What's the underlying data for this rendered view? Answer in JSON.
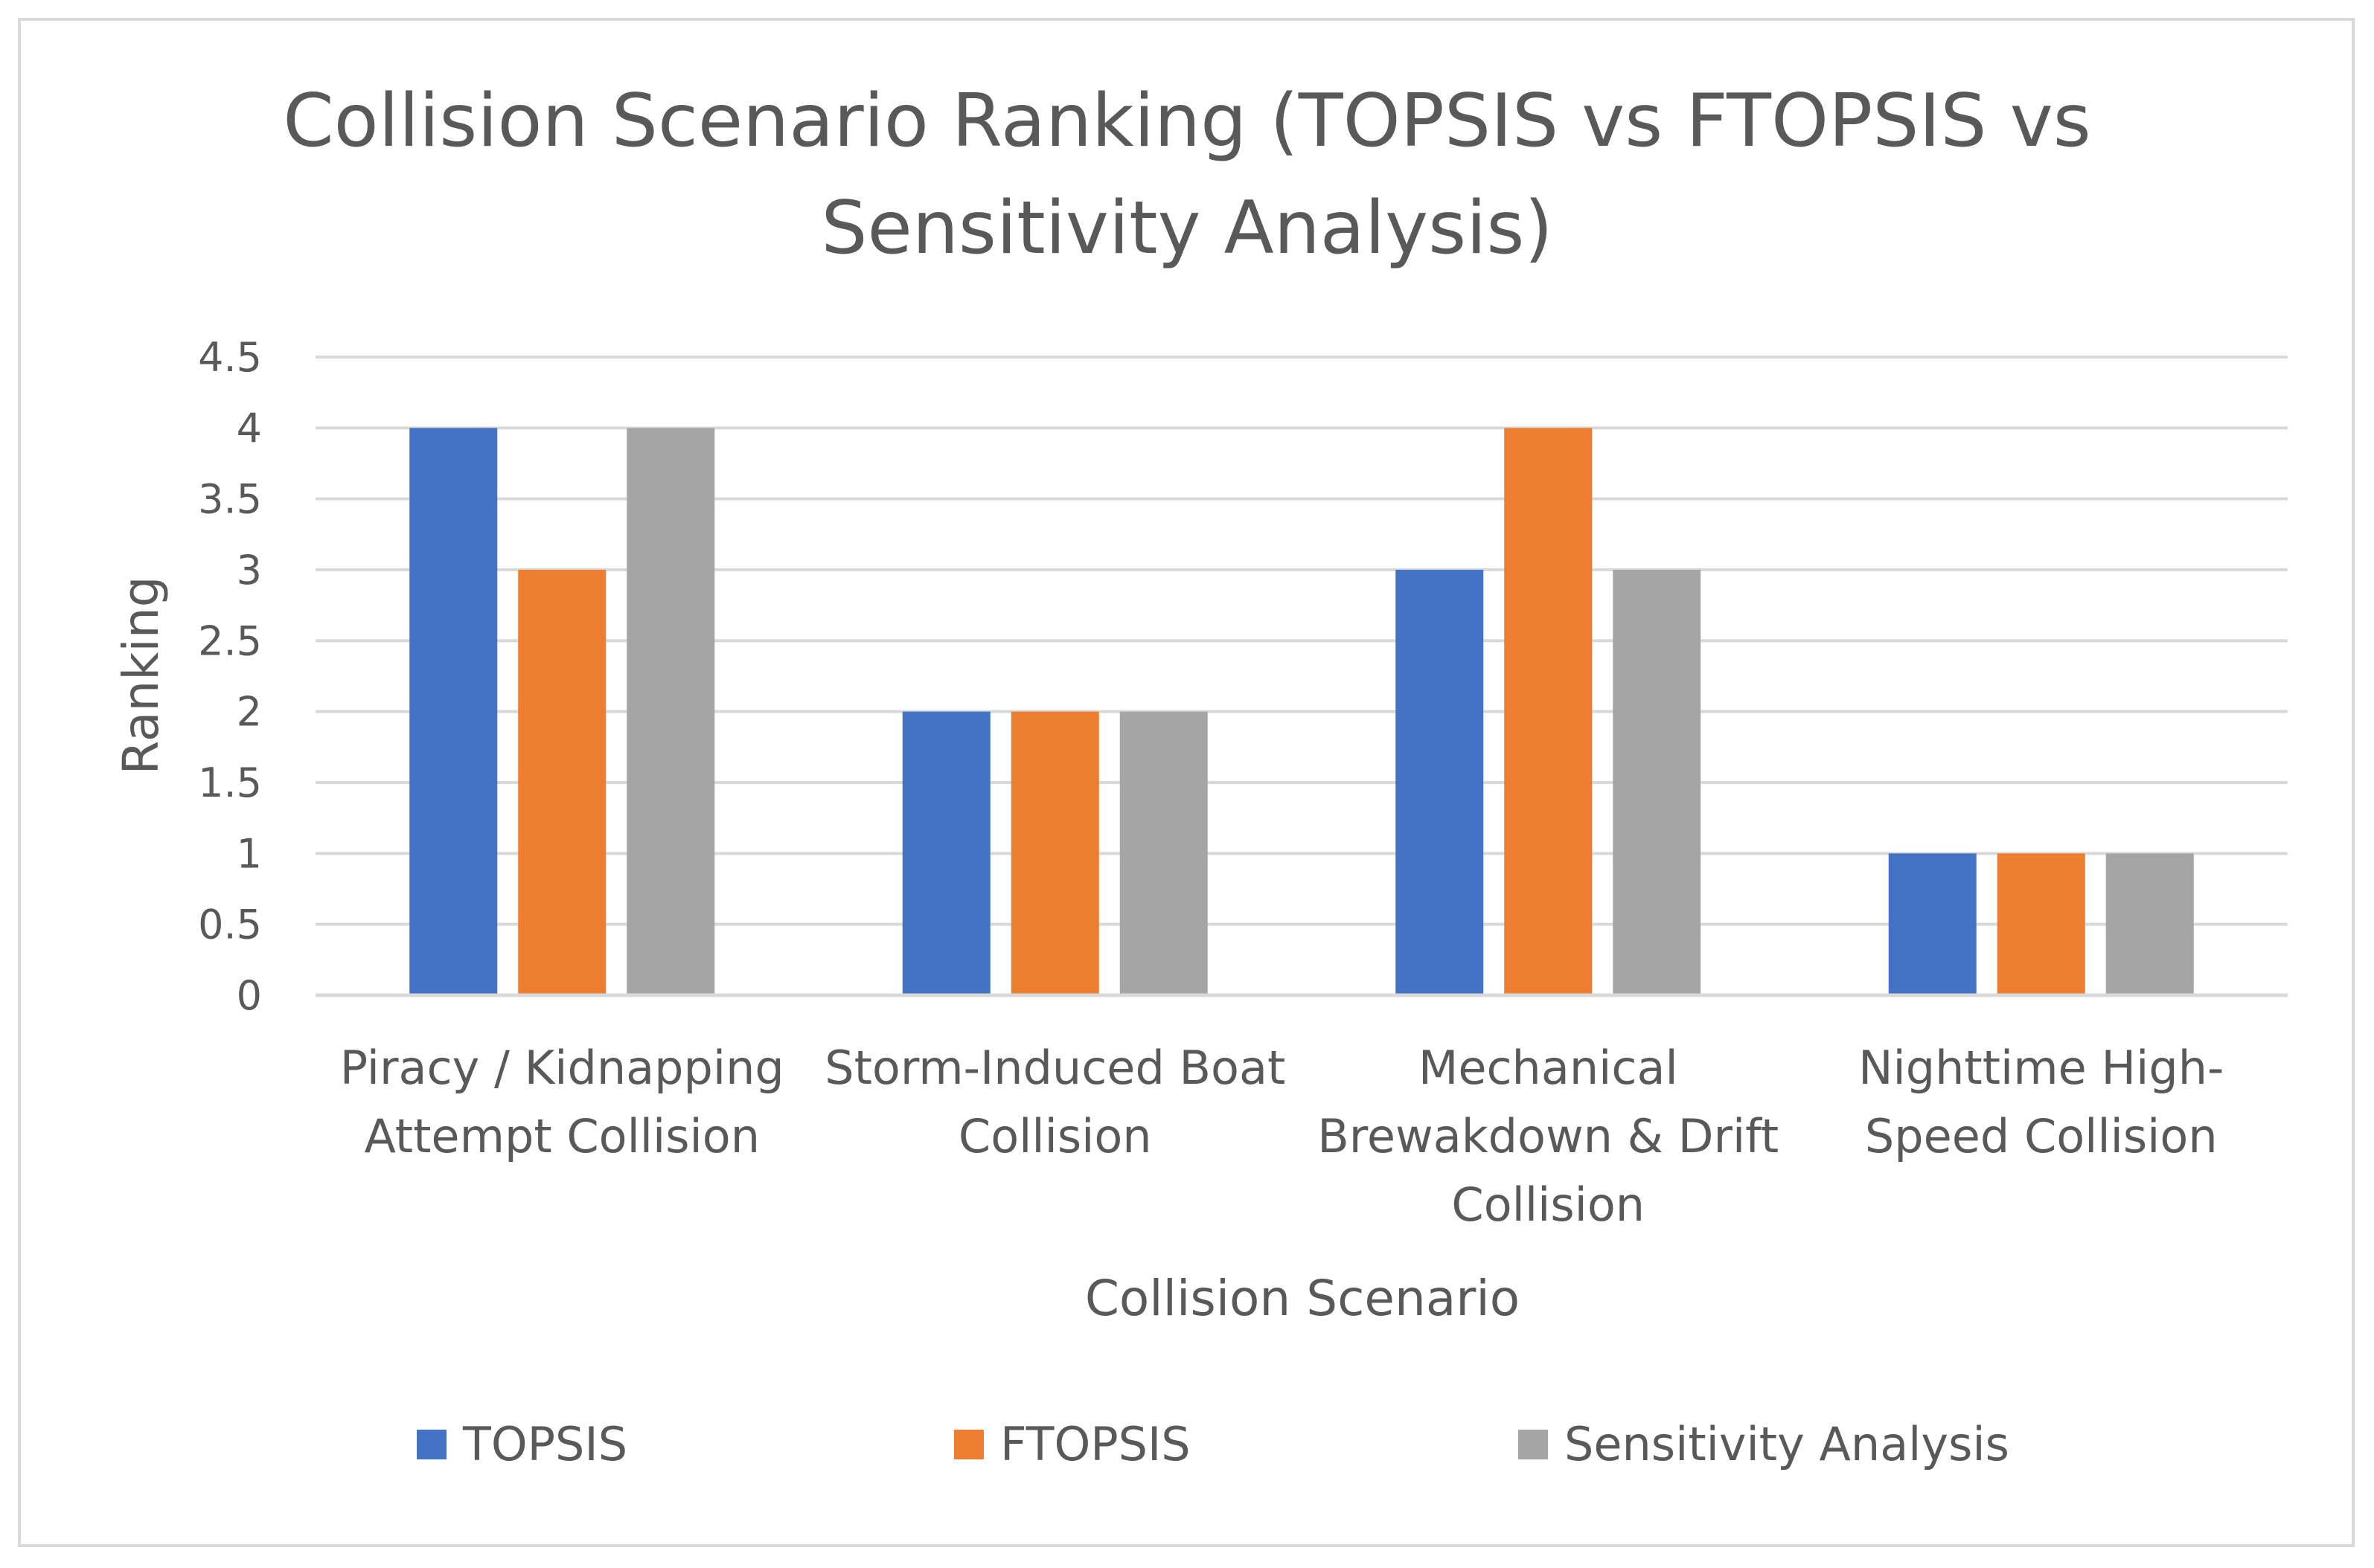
{
  "chart_data": {
    "type": "bar",
    "title_lines": [
      "Collision Scenario Ranking (TOPSIS vs FTOPSIS vs",
      "Sensitivity Analysis)"
    ],
    "xlabel": "Collision Scenario",
    "ylabel": "Ranking",
    "ylim": [
      0,
      4.5
    ],
    "yticks": [
      "0",
      "0.5",
      "1",
      "1.5",
      "2",
      "2.5",
      "3",
      "3.5",
      "4",
      "4.5"
    ],
    "grid": true,
    "legend_position": "bottom",
    "categories": [
      [
        "Piracy / Kidnapping",
        "Attempt Collision"
      ],
      [
        "Storm-Induced Boat",
        "Collision"
      ],
      [
        "Mechanical",
        "Brewakdown & Drift",
        "Collision"
      ],
      [
        "Nighttime High-",
        "Speed Collision"
      ]
    ],
    "series": [
      {
        "name": "TOPSIS",
        "color": "#4472c4",
        "values": [
          4,
          2,
          3,
          1
        ]
      },
      {
        "name": "FTOPSIS",
        "color": "#ed7d31",
        "values": [
          3,
          2,
          4,
          1
        ]
      },
      {
        "name": "Sensitivity Analysis",
        "color": "#a5a5a5",
        "values": [
          4,
          2,
          3,
          1
        ]
      }
    ]
  }
}
